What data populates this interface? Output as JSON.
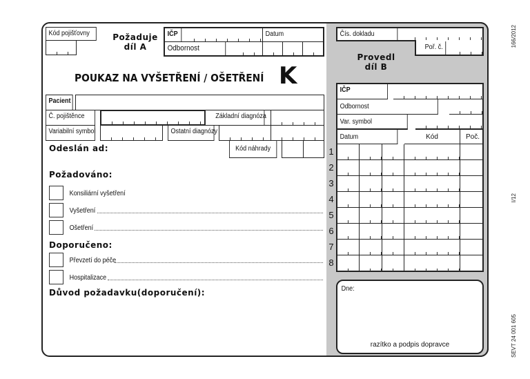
{
  "part_a": {
    "kod_pojistovny": "Kód pojišťovny",
    "pozaduje": "Požaduje",
    "dil_a": "díl A",
    "icp": "IČP",
    "datum": "Datum",
    "odbornost": "Odbornost",
    "title": "POUKAZ NA VYŠETŘENÍ / OŠETŘENÍ",
    "title_letter": "K",
    "pacient": "Pacient",
    "c_pojistence": "Č. pojištěnce",
    "zakladni_diagnoza": "Základní diagnóza",
    "variabilni_symbol": "Variabilní symbol",
    "ostatni_diagnozy": "Ostatní diagnózy",
    "kod_nahrady": "Kód náhrady",
    "odeslan_ad": "Odeslán ad:",
    "pozadovano": "Požadováno:",
    "pozadovano_items": [
      "Konsiliární vyšetření",
      "Vyšetření",
      "Ošetření"
    ],
    "doporuceno": "Doporučeno:",
    "doporuceno_items": [
      "Převzetí do péče",
      "Hospitalizace"
    ],
    "duvod": "Důvod požadavku(doporučení):"
  },
  "part_b": {
    "cis_dokladu": "Čís. dokladu",
    "por_c": "Poř. č.",
    "provedl": "Provedl",
    "dil_b": "díl B",
    "icp": "IČP",
    "odbornost": "Odbornost",
    "var_symbol": "Var. symbol",
    "col_datum": "Datum",
    "col_kod": "Kód",
    "col_poc": "Poč.",
    "row_numbers": [
      "1",
      "2",
      "3",
      "4",
      "5",
      "6",
      "7",
      "8"
    ],
    "dne": "Dne:",
    "razitko": "razítko a podpis dopravce"
  },
  "margin": {
    "code_top": "166/2012",
    "code_mid": "I/12",
    "code_bottom": "SEVT 24 001 605"
  },
  "colors": {
    "panel_gray": "#c8c8c8",
    "line": "#222222"
  }
}
